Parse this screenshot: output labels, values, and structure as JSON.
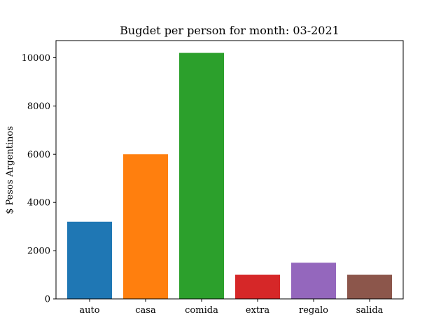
{
  "chart_data": {
    "type": "bar",
    "title": "Bugdet per person for month: 03-2021",
    "xlabel": "",
    "ylabel": "$ Pesos Argentinos",
    "categories": [
      "auto",
      "casa",
      "comida",
      "extra",
      "regalo",
      "salida"
    ],
    "values": [
      3200,
      6000,
      10200,
      1000,
      1500,
      1000
    ],
    "colors": [
      "#1f77b4",
      "#ff7f0e",
      "#2ca02c",
      "#d62728",
      "#9467bd",
      "#8c564b"
    ],
    "ylim": [
      0,
      10710
    ],
    "yticks": [
      0,
      2000,
      4000,
      6000,
      8000,
      10000
    ],
    "grid": false,
    "legend": "none"
  }
}
